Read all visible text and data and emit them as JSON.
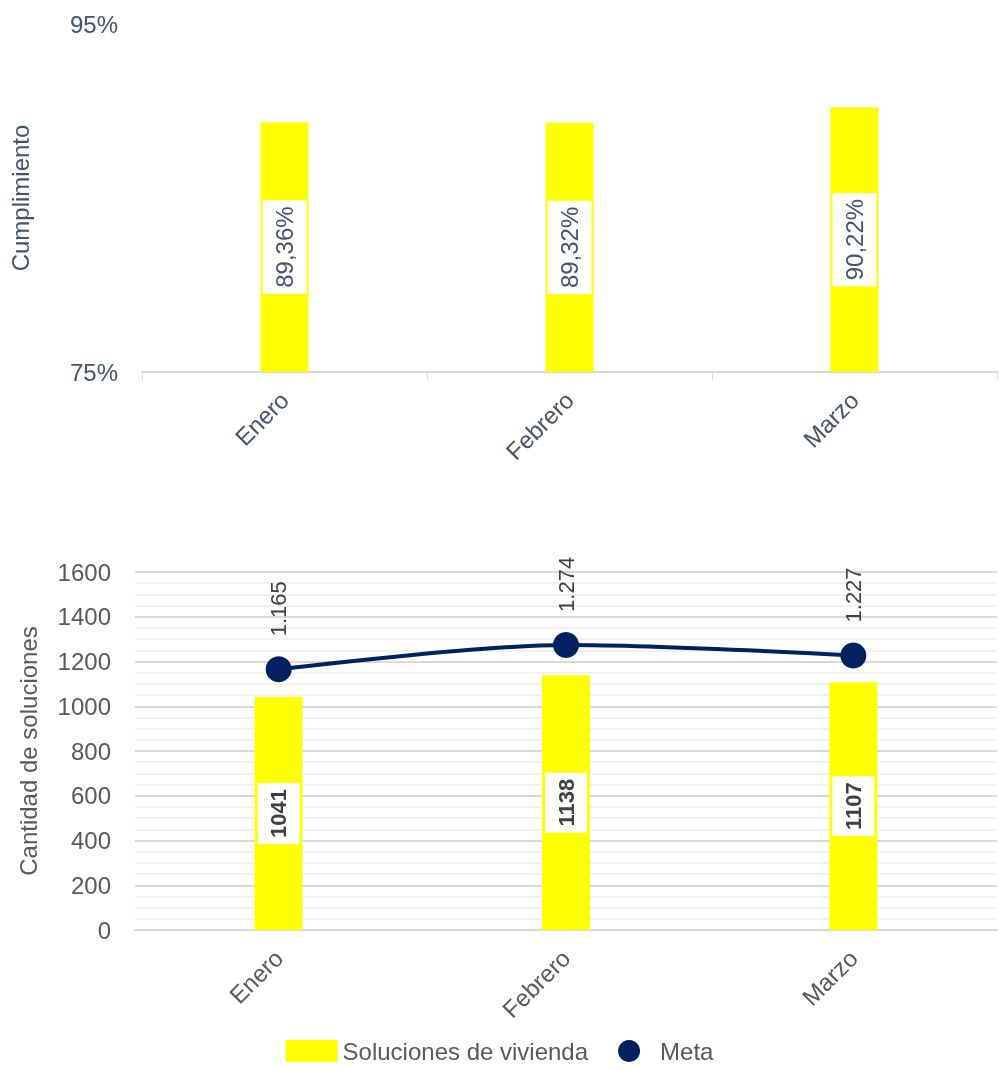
{
  "chart_data": [
    {
      "type": "bar",
      "ylabel": "Cumplimiento",
      "categories": [
        "Enero",
        "Febrero",
        "Marzo"
      ],
      "series": [
        {
          "color": "#ffff00",
          "values": [
            89.36,
            89.32,
            90.22
          ],
          "value_labels": [
            "89,36%",
            "89,32%",
            "90,22%"
          ]
        }
      ],
      "ylim": [
        75,
        95
      ],
      "yticks": [
        {
          "value": 75,
          "label": "75%"
        },
        {
          "value": 95,
          "label": "95%"
        }
      ],
      "grid": false
    },
    {
      "type": "bar",
      "ylabel": "Cantidad de soluciones",
      "categories": [
        "Enero",
        "Febrero",
        "Marzo"
      ],
      "series": [
        {
          "name": "Soluciones de vivienda",
          "color": "#ffff00",
          "values": [
            1041,
            1138,
            1107
          ],
          "value_labels": [
            "1041",
            "1138",
            "1107"
          ]
        },
        {
          "name": "Meta",
          "type": "line",
          "color": "#002060",
          "values": [
            1165,
            1274,
            1227
          ],
          "value_labels": [
            "1.165",
            "1.274",
            "1.227"
          ],
          "marker": "circle"
        }
      ],
      "ylim": [
        0,
        1600
      ],
      "yticks": [
        0,
        200,
        400,
        600,
        800,
        1000,
        1200,
        1400,
        1600
      ],
      "grid": true,
      "legend": "bottom"
    }
  ]
}
